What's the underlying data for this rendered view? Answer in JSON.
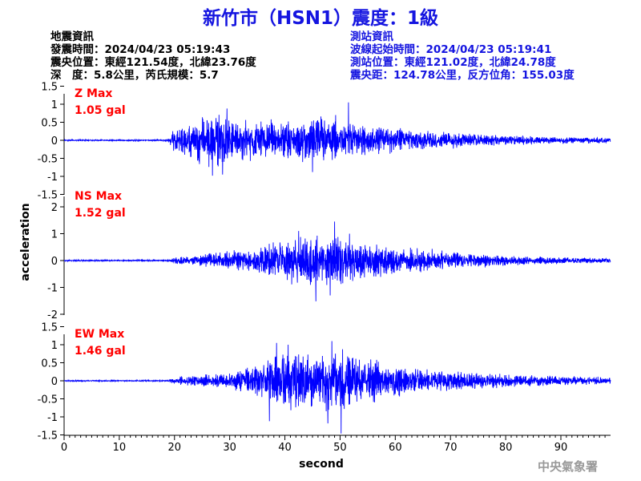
{
  "header": {
    "title": "新竹市（HSN1）震度：1級"
  },
  "quake_info": {
    "heading": "地震資訊",
    "origin_time": "發震時間：2024/04/23 05:19:43",
    "epicenter": "震央位置：東經121.54度，北緯23.76度",
    "depth_magnitude": "深　度：5.8公里，芮氏規模：5.7"
  },
  "station_info": {
    "heading": "測站資訊",
    "wave_start": "波線起始時間：2024/04/23 05:19:41",
    "location": "測站位置：東經121.02度，北緯24.78度",
    "distance": "震央距：124.78公里，反方位角：155.03度"
  },
  "footer": {
    "agency": "中央氣象署"
  },
  "chart_data": {
    "type": "line",
    "xlabel": "second",
    "ylabel": "acceleration",
    "xlim": [
      0,
      99
    ],
    "xticks": [
      0,
      10,
      20,
      30,
      40,
      50,
      60,
      70,
      80,
      90
    ],
    "line_color": "#0000ff",
    "max_label_color": "#ff0000",
    "panels": [
      {
        "name": "Z",
        "max_label": "Z Max",
        "max_value": "1.05 gal",
        "ylim": [
          -1.5,
          1.5
        ],
        "yticks": [
          1.5,
          1,
          0.5,
          0,
          -0.5,
          -1,
          -1.5
        ],
        "ytick_labels": [
          "1.5",
          "1",
          "0.5",
          "0",
          "-0.5",
          "-1",
          "-1.5"
        ],
        "envelope": [
          [
            0,
            0.02
          ],
          [
            18.8,
            0.02
          ],
          [
            19.5,
            0.3
          ],
          [
            22,
            0.45
          ],
          [
            25,
            0.75
          ],
          [
            28,
            0.8
          ],
          [
            31,
            0.6
          ],
          [
            35,
            0.55
          ],
          [
            39,
            0.55
          ],
          [
            43,
            0.6
          ],
          [
            47,
            0.75
          ],
          [
            50,
            0.55
          ],
          [
            55,
            0.45
          ],
          [
            60,
            0.4
          ],
          [
            65,
            0.3
          ],
          [
            70,
            0.25
          ],
          [
            80,
            0.15
          ],
          [
            90,
            0.1
          ],
          [
            99,
            0.08
          ]
        ],
        "peaks": [
          [
            26.9,
            -0.98
          ],
          [
            28.7,
            -0.95
          ],
          [
            29.5,
            0.88
          ],
          [
            45.0,
            -0.88
          ],
          [
            51.5,
            1.05
          ],
          [
            49.2,
            0.7
          ],
          [
            37.5,
            0.58
          ]
        ],
        "seed": 7
      },
      {
        "name": "NS",
        "max_label": "NS Max",
        "max_value": "1.52 gal",
        "ylim": [
          -2,
          2
        ],
        "yticks": [
          2,
          1,
          0,
          -1,
          -2
        ],
        "ytick_labels": [
          "2",
          "1",
          "0",
          "-1",
          "-2"
        ],
        "envelope": [
          [
            0,
            0.03
          ],
          [
            19.0,
            0.03
          ],
          [
            19.8,
            0.12
          ],
          [
            25,
            0.25
          ],
          [
            30,
            0.4
          ],
          [
            35,
            0.55
          ],
          [
            40,
            0.8
          ],
          [
            43,
            1.0
          ],
          [
            46,
            1.1
          ],
          [
            49,
            1.0
          ],
          [
            52,
            0.85
          ],
          [
            56,
            0.7
          ],
          [
            60,
            0.55
          ],
          [
            65,
            0.45
          ],
          [
            70,
            0.35
          ],
          [
            80,
            0.2
          ],
          [
            90,
            0.13
          ],
          [
            99,
            0.1
          ]
        ],
        "peaks": [
          [
            45.6,
            -1.52
          ],
          [
            49.0,
            1.45
          ],
          [
            42.5,
            1.1
          ],
          [
            48.2,
            -1.3
          ],
          [
            51.7,
            1.0
          ]
        ],
        "seed": 19
      },
      {
        "name": "EW",
        "max_label": "EW Max",
        "max_value": "1.46 gal",
        "ylim": [
          -1.5,
          1.5
        ],
        "yticks": [
          1.5,
          1,
          0.5,
          0,
          -0.5,
          -1,
          -1.5
        ],
        "ytick_labels": [
          "1.5",
          "1",
          "0.5",
          "0",
          "-0.5",
          "-1",
          "-1.5"
        ],
        "envelope": [
          [
            0,
            0.02
          ],
          [
            19.0,
            0.02
          ],
          [
            19.8,
            0.1
          ],
          [
            25,
            0.18
          ],
          [
            30,
            0.25
          ],
          [
            34,
            0.45
          ],
          [
            37,
            0.8
          ],
          [
            41,
            0.9
          ],
          [
            45,
            0.85
          ],
          [
            48,
            0.95
          ],
          [
            51,
            0.9
          ],
          [
            55,
            0.65
          ],
          [
            60,
            0.45
          ],
          [
            65,
            0.35
          ],
          [
            70,
            0.3
          ],
          [
            80,
            0.2
          ],
          [
            90,
            0.14
          ],
          [
            99,
            0.1
          ]
        ],
        "peaks": [
          [
            50.2,
            -1.46
          ],
          [
            37.2,
            -1.12
          ],
          [
            47.8,
            -1.18
          ],
          [
            38.5,
            1.05
          ],
          [
            48.5,
            1.1
          ],
          [
            40.6,
            1.0
          ]
        ],
        "seed": 31
      }
    ]
  }
}
